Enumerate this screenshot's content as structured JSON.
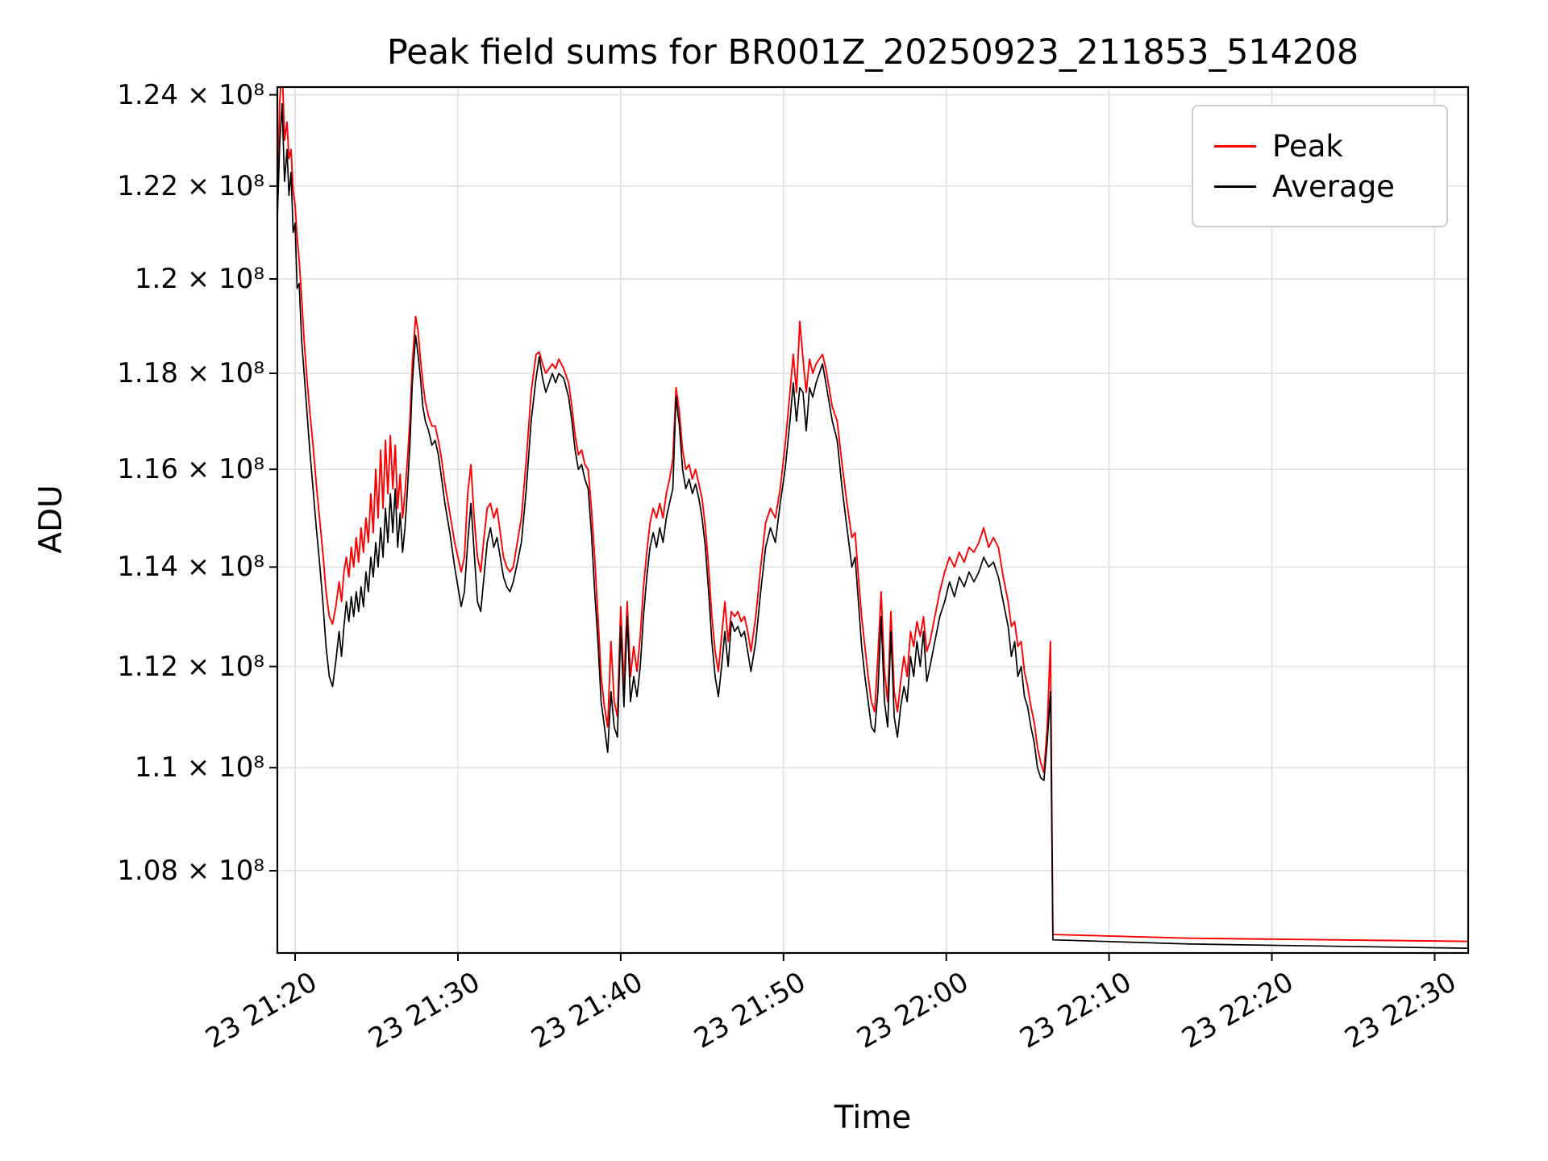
{
  "chart_data": {
    "type": "line",
    "title": "Peak field sums for BR001Z_20250923_211853_514208",
    "xlabel": "Time",
    "ylabel": "ADU",
    "yscale": "log",
    "grid": true,
    "legend_position": "upper right",
    "y_value_unit": "×10⁸ ADU",
    "x_unit": "minutes, 0 = 2025-09-23 21:15",
    "xlim": [
      3.908,
      77.06
    ],
    "ylim": [
      1.0643,
      1.2417
    ],
    "x_ticks": [
      {
        "v": 5,
        "label": "23 21:20"
      },
      {
        "v": 15,
        "label": "23 21:30"
      },
      {
        "v": 25,
        "label": "23 21:40"
      },
      {
        "v": 35,
        "label": "23 21:50"
      },
      {
        "v": 45,
        "label": "23 22:00"
      },
      {
        "v": 55,
        "label": "23 22:10"
      },
      {
        "v": 65,
        "label": "23 22:20"
      },
      {
        "v": 75,
        "label": "23 22:30"
      }
    ],
    "y_ticks": [
      {
        "v": 1.08,
        "label": "1.08 × 10⁸"
      },
      {
        "v": 1.1,
        "label": "1.1 × 10⁸"
      },
      {
        "v": 1.12,
        "label": "1.12 × 10⁸"
      },
      {
        "v": 1.14,
        "label": "1.14 × 10⁸"
      },
      {
        "v": 1.16,
        "label": "1.16 × 10⁸"
      },
      {
        "v": 1.18,
        "label": "1.18 × 10⁸"
      },
      {
        "v": 1.2,
        "label": "1.2 × 10⁸"
      },
      {
        "v": 1.22,
        "label": "1.22 × 10⁸"
      },
      {
        "v": 1.24,
        "label": "1.24 × 10⁸"
      }
    ],
    "series": [
      {
        "name": "Peak",
        "color": "#ff0000",
        "column": 2
      },
      {
        "name": "Average",
        "color": "#000000",
        "column": 1
      }
    ],
    "points_format": [
      "t_minutes",
      "average",
      "peak"
    ],
    "points": [
      [
        3.91,
        1.213,
        1.218
      ],
      [
        4.05,
        1.229,
        1.238
      ],
      [
        4.2,
        1.238,
        1.247
      ],
      [
        4.35,
        1.221,
        1.23
      ],
      [
        4.5,
        1.228,
        1.234
      ],
      [
        4.62,
        1.218,
        1.226
      ],
      [
        4.75,
        1.223,
        1.228
      ],
      [
        4.88,
        1.21,
        1.219
      ],
      [
        5.0,
        1.212,
        1.216
      ],
      [
        5.12,
        1.198,
        1.209
      ],
      [
        5.25,
        1.199,
        1.204
      ],
      [
        5.4,
        1.187,
        1.196
      ],
      [
        5.55,
        1.18,
        1.187
      ],
      [
        5.7,
        1.173,
        1.18
      ],
      [
        5.9,
        1.164,
        1.172
      ],
      [
        6.1,
        1.156,
        1.165
      ],
      [
        6.3,
        1.148,
        1.157
      ],
      [
        6.5,
        1.141,
        1.15
      ],
      [
        6.7,
        1.133,
        1.143
      ],
      [
        6.9,
        1.124,
        1.135
      ],
      [
        7.1,
        1.118,
        1.13
      ],
      [
        7.3,
        1.116,
        1.1285
      ],
      [
        7.5,
        1.121,
        1.132
      ],
      [
        7.7,
        1.127,
        1.137
      ],
      [
        7.85,
        1.122,
        1.133
      ],
      [
        8.0,
        1.128,
        1.139
      ],
      [
        8.15,
        1.133,
        1.142
      ],
      [
        8.3,
        1.129,
        1.138
      ],
      [
        8.45,
        1.134,
        1.144
      ],
      [
        8.6,
        1.13,
        1.14
      ],
      [
        8.75,
        1.135,
        1.146
      ],
      [
        8.9,
        1.131,
        1.141
      ],
      [
        9.05,
        1.136,
        1.148
      ],
      [
        9.2,
        1.132,
        1.143
      ],
      [
        9.35,
        1.139,
        1.15
      ],
      [
        9.5,
        1.135,
        1.145
      ],
      [
        9.65,
        1.142,
        1.155
      ],
      [
        9.8,
        1.138,
        1.147
      ],
      [
        9.95,
        1.145,
        1.16
      ],
      [
        10.1,
        1.14,
        1.15
      ],
      [
        10.25,
        1.148,
        1.164
      ],
      [
        10.4,
        1.142,
        1.152
      ],
      [
        10.55,
        1.152,
        1.166
      ],
      [
        10.7,
        1.145,
        1.155
      ],
      [
        10.85,
        1.155,
        1.167
      ],
      [
        11.0,
        1.147,
        1.156
      ],
      [
        11.15,
        1.156,
        1.165
      ],
      [
        11.3,
        1.144,
        1.152
      ],
      [
        11.45,
        1.151,
        1.159
      ],
      [
        11.6,
        1.143,
        1.15
      ],
      [
        11.75,
        1.148,
        1.155
      ],
      [
        11.9,
        1.156,
        1.162
      ],
      [
        12.05,
        1.165,
        1.17
      ],
      [
        12.2,
        1.178,
        1.182
      ],
      [
        12.4,
        1.188,
        1.192
      ],
      [
        12.55,
        1.184,
        1.189
      ],
      [
        12.7,
        1.179,
        1.183
      ],
      [
        12.85,
        1.173,
        1.178
      ],
      [
        13.0,
        1.17,
        1.174
      ],
      [
        13.2,
        1.168,
        1.171
      ],
      [
        13.4,
        1.165,
        1.169
      ],
      [
        13.6,
        1.166,
        1.169
      ],
      [
        13.8,
        1.163,
        1.166
      ],
      [
        14.0,
        1.158,
        1.162
      ],
      [
        14.2,
        1.153,
        1.157
      ],
      [
        14.5,
        1.147,
        1.151
      ],
      [
        14.8,
        1.14,
        1.145
      ],
      [
        15.0,
        1.136,
        1.142
      ],
      [
        15.2,
        1.132,
        1.139
      ],
      [
        15.4,
        1.135,
        1.142
      ],
      [
        15.6,
        1.145,
        1.155
      ],
      [
        15.8,
        1.153,
        1.161
      ],
      [
        16.0,
        1.143,
        1.15
      ],
      [
        16.2,
        1.133,
        1.142
      ],
      [
        16.4,
        1.131,
        1.139
      ],
      [
        16.6,
        1.138,
        1.146
      ],
      [
        16.8,
        1.145,
        1.152
      ],
      [
        17.0,
        1.148,
        1.153
      ],
      [
        17.2,
        1.144,
        1.15
      ],
      [
        17.4,
        1.146,
        1.152
      ],
      [
        17.6,
        1.142,
        1.147
      ],
      [
        17.8,
        1.138,
        1.142
      ],
      [
        18.0,
        1.136,
        1.14
      ],
      [
        18.2,
        1.135,
        1.139
      ],
      [
        18.4,
        1.137,
        1.14
      ],
      [
        18.6,
        1.14,
        1.144
      ],
      [
        18.9,
        1.145,
        1.15
      ],
      [
        19.2,
        1.156,
        1.162
      ],
      [
        19.5,
        1.17,
        1.176
      ],
      [
        19.8,
        1.179,
        1.184
      ],
      [
        20.0,
        1.1835,
        1.1845
      ],
      [
        20.2,
        1.179,
        1.182
      ],
      [
        20.4,
        1.176,
        1.18
      ],
      [
        20.6,
        1.178,
        1.181
      ],
      [
        20.8,
        1.18,
        1.182
      ],
      [
        21.0,
        1.178,
        1.181
      ],
      [
        21.2,
        1.18,
        1.183
      ],
      [
        21.5,
        1.179,
        1.181
      ],
      [
        21.8,
        1.175,
        1.178
      ],
      [
        22.0,
        1.17,
        1.173
      ],
      [
        22.2,
        1.164,
        1.167
      ],
      [
        22.4,
        1.16,
        1.163
      ],
      [
        22.6,
        1.161,
        1.164
      ],
      [
        22.8,
        1.158,
        1.161
      ],
      [
        23.0,
        1.156,
        1.16
      ],
      [
        23.2,
        1.147,
        1.152
      ],
      [
        23.4,
        1.135,
        1.142
      ],
      [
        23.6,
        1.125,
        1.13
      ],
      [
        23.8,
        1.113,
        1.118
      ],
      [
        24.0,
        1.108,
        1.112
      ],
      [
        24.2,
        1.103,
        1.108
      ],
      [
        24.4,
        1.115,
        1.125
      ],
      [
        24.6,
        1.108,
        1.113
      ],
      [
        24.8,
        1.106,
        1.11
      ],
      [
        25.0,
        1.128,
        1.132
      ],
      [
        25.2,
        1.112,
        1.116
      ],
      [
        25.4,
        1.13,
        1.133
      ],
      [
        25.6,
        1.113,
        1.118
      ],
      [
        25.8,
        1.118,
        1.124
      ],
      [
        26.0,
        1.114,
        1.119
      ],
      [
        26.2,
        1.12,
        1.126
      ],
      [
        26.4,
        1.13,
        1.136
      ],
      [
        26.6,
        1.138,
        1.143
      ],
      [
        26.8,
        1.144,
        1.149
      ],
      [
        27.0,
        1.147,
        1.152
      ],
      [
        27.2,
        1.144,
        1.15
      ],
      [
        27.4,
        1.148,
        1.153
      ],
      [
        27.6,
        1.145,
        1.15
      ],
      [
        27.8,
        1.15,
        1.155
      ],
      [
        28.0,
        1.153,
        1.158
      ],
      [
        28.2,
        1.156,
        1.162
      ],
      [
        28.4,
        1.175,
        1.177
      ],
      [
        28.6,
        1.169,
        1.172
      ],
      [
        28.8,
        1.16,
        1.164
      ],
      [
        29.0,
        1.156,
        1.16
      ],
      [
        29.2,
        1.158,
        1.161
      ],
      [
        29.4,
        1.155,
        1.158
      ],
      [
        29.6,
        1.157,
        1.16
      ],
      [
        29.8,
        1.154,
        1.157
      ],
      [
        30.0,
        1.15,
        1.154
      ],
      [
        30.2,
        1.144,
        1.148
      ],
      [
        30.4,
        1.135,
        1.14
      ],
      [
        30.6,
        1.125,
        1.13
      ],
      [
        30.8,
        1.118,
        1.123
      ],
      [
        31.0,
        1.114,
        1.119
      ],
      [
        31.2,
        1.12,
        1.126
      ],
      [
        31.4,
        1.127,
        1.133
      ],
      [
        31.6,
        1.12,
        1.125
      ],
      [
        31.8,
        1.129,
        1.131
      ],
      [
        32.0,
        1.127,
        1.13
      ],
      [
        32.2,
        1.128,
        1.131
      ],
      [
        32.4,
        1.126,
        1.129
      ],
      [
        32.6,
        1.127,
        1.13
      ],
      [
        32.8,
        1.123,
        1.127
      ],
      [
        33.0,
        1.119,
        1.123
      ],
      [
        33.3,
        1.125,
        1.13
      ],
      [
        33.6,
        1.135,
        1.14
      ],
      [
        33.9,
        1.144,
        1.149
      ],
      [
        34.2,
        1.148,
        1.152
      ],
      [
        34.5,
        1.145,
        1.15
      ],
      [
        34.8,
        1.153,
        1.156
      ],
      [
        35.1,
        1.16,
        1.165
      ],
      [
        35.4,
        1.17,
        1.176
      ],
      [
        35.6,
        1.178,
        1.184
      ],
      [
        35.8,
        1.17,
        1.176
      ],
      [
        36.0,
        1.177,
        1.191
      ],
      [
        36.2,
        1.176,
        1.183
      ],
      [
        36.4,
        1.168,
        1.176
      ],
      [
        36.6,
        1.177,
        1.183
      ],
      [
        36.8,
        1.175,
        1.18
      ],
      [
        37.0,
        1.178,
        1.182
      ],
      [
        37.2,
        1.18,
        1.183
      ],
      [
        37.4,
        1.182,
        1.184
      ],
      [
        37.6,
        1.178,
        1.181
      ],
      [
        37.8,
        1.174,
        1.177
      ],
      [
        38.0,
        1.17,
        1.173
      ],
      [
        38.3,
        1.166,
        1.17
      ],
      [
        38.6,
        1.156,
        1.161
      ],
      [
        38.9,
        1.148,
        1.153
      ],
      [
        39.2,
        1.14,
        1.146
      ],
      [
        39.4,
        1.142,
        1.147
      ],
      [
        39.6,
        1.133,
        1.138
      ],
      [
        39.8,
        1.124,
        1.13
      ],
      [
        40.0,
        1.118,
        1.124
      ],
      [
        40.2,
        1.113,
        1.118
      ],
      [
        40.4,
        1.108,
        1.113
      ],
      [
        40.6,
        1.107,
        1.111
      ],
      [
        40.8,
        1.115,
        1.122
      ],
      [
        41.0,
        1.13,
        1.135
      ],
      [
        41.2,
        1.113,
        1.119
      ],
      [
        41.4,
        1.108,
        1.113
      ],
      [
        41.6,
        1.127,
        1.131
      ],
      [
        41.8,
        1.11,
        1.115
      ],
      [
        42.0,
        1.106,
        1.111
      ],
      [
        42.2,
        1.112,
        1.117
      ],
      [
        42.4,
        1.116,
        1.122
      ],
      [
        42.6,
        1.113,
        1.118
      ],
      [
        42.8,
        1.122,
        1.127
      ],
      [
        43.0,
        1.118,
        1.124
      ],
      [
        43.2,
        1.125,
        1.129
      ],
      [
        43.4,
        1.12,
        1.126
      ],
      [
        43.6,
        1.127,
        1.13
      ],
      [
        43.8,
        1.117,
        1.123
      ],
      [
        44.0,
        1.12,
        1.125
      ],
      [
        44.3,
        1.125,
        1.13
      ],
      [
        44.6,
        1.13,
        1.135
      ],
      [
        44.9,
        1.133,
        1.139
      ],
      [
        45.2,
        1.137,
        1.142
      ],
      [
        45.5,
        1.134,
        1.14
      ],
      [
        45.8,
        1.138,
        1.143
      ],
      [
        46.1,
        1.136,
        1.141
      ],
      [
        46.4,
        1.139,
        1.144
      ],
      [
        46.7,
        1.137,
        1.143
      ],
      [
        47.0,
        1.139,
        1.145
      ],
      [
        47.3,
        1.142,
        1.148
      ],
      [
        47.6,
        1.14,
        1.144
      ],
      [
        47.9,
        1.141,
        1.146
      ],
      [
        48.2,
        1.138,
        1.144
      ],
      [
        48.5,
        1.133,
        1.138
      ],
      [
        48.8,
        1.128,
        1.133
      ],
      [
        49.0,
        1.122,
        1.128
      ],
      [
        49.2,
        1.125,
        1.129
      ],
      [
        49.4,
        1.118,
        1.124
      ],
      [
        49.6,
        1.12,
        1.125
      ],
      [
        49.8,
        1.114,
        1.119
      ],
      [
        50.0,
        1.112,
        1.116
      ],
      [
        50.2,
        1.108,
        1.112
      ],
      [
        50.4,
        1.105,
        1.109
      ],
      [
        50.6,
        1.1,
        1.104
      ],
      [
        50.8,
        1.098,
        1.101
      ],
      [
        51.0,
        1.0975,
        1.099
      ],
      [
        51.2,
        1.105,
        1.108
      ],
      [
        51.4,
        1.115,
        1.125
      ],
      [
        51.55,
        1.0668,
        1.0678
      ],
      [
        60.0,
        1.066,
        1.0671
      ],
      [
        77.0,
        1.0652,
        1.0665
      ]
    ]
  }
}
